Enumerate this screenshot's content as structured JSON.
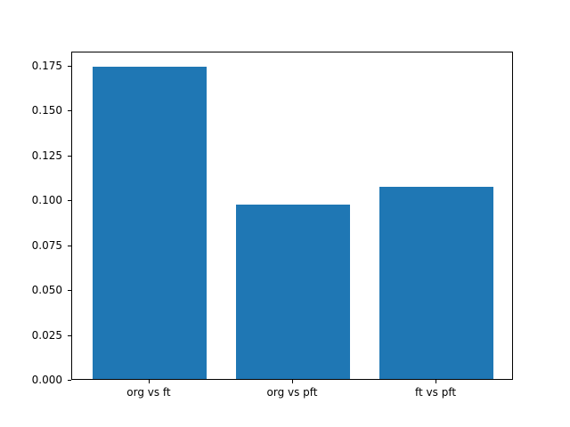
{
  "chart_data": {
    "type": "bar",
    "categories": [
      "org vs ft",
      "org vs pft",
      "ft vs pft"
    ],
    "values": [
      0.174,
      0.097,
      0.107
    ],
    "title": "",
    "xlabel": "",
    "ylabel": "",
    "ylim": [
      0,
      0.1827
    ],
    "ytick_labels": [
      "0.000",
      "0.025",
      "0.050",
      "0.075",
      "0.100",
      "0.125",
      "0.150",
      "0.175"
    ],
    "bar_color": "#1f77b4",
    "grid": false,
    "legend": "none"
  }
}
